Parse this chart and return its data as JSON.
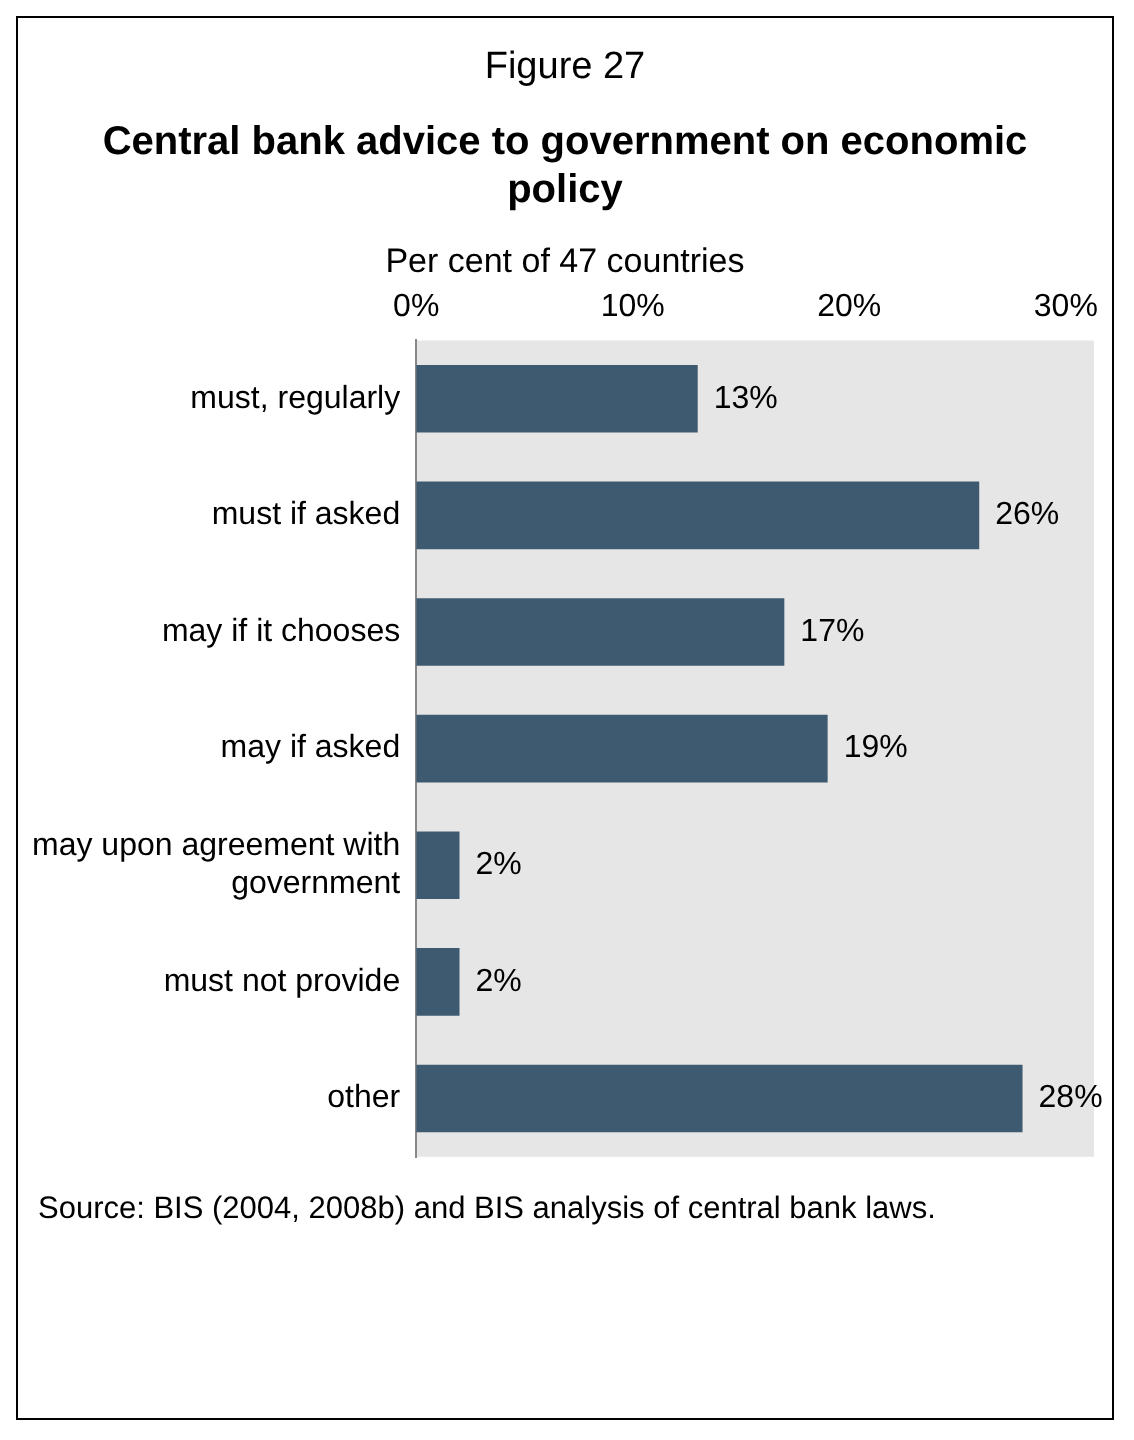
{
  "chart_data": {
    "type": "bar",
    "orientation": "horizontal",
    "title": "Central bank advice to government on economic policy",
    "subtitle": "Per cent of 47 countries",
    "annotations": [
      "Figure 27",
      "Source: BIS (2004, 2008b) and BIS analysis of central bank laws."
    ],
    "categories": [
      "must, regularly",
      "must if asked",
      "may if it chooses",
      "may if asked",
      "may upon agreement with government",
      "must not provide",
      "other"
    ],
    "values": [
      13,
      26,
      17,
      19,
      2,
      2,
      28
    ],
    "value_labels": [
      "13%",
      "26%",
      "17%",
      "19%",
      "2%",
      "2%",
      "28%"
    ],
    "color": "#3e5a70",
    "xlim": [
      0,
      31.3
    ],
    "xticks": [
      {
        "value": 0,
        "label": "0%"
      },
      {
        "value": 10,
        "label": "10%"
      },
      {
        "value": 20,
        "label": "20%"
      },
      {
        "value": 30,
        "label": "30%"
      }
    ],
    "grid": false,
    "legend": false
  }
}
